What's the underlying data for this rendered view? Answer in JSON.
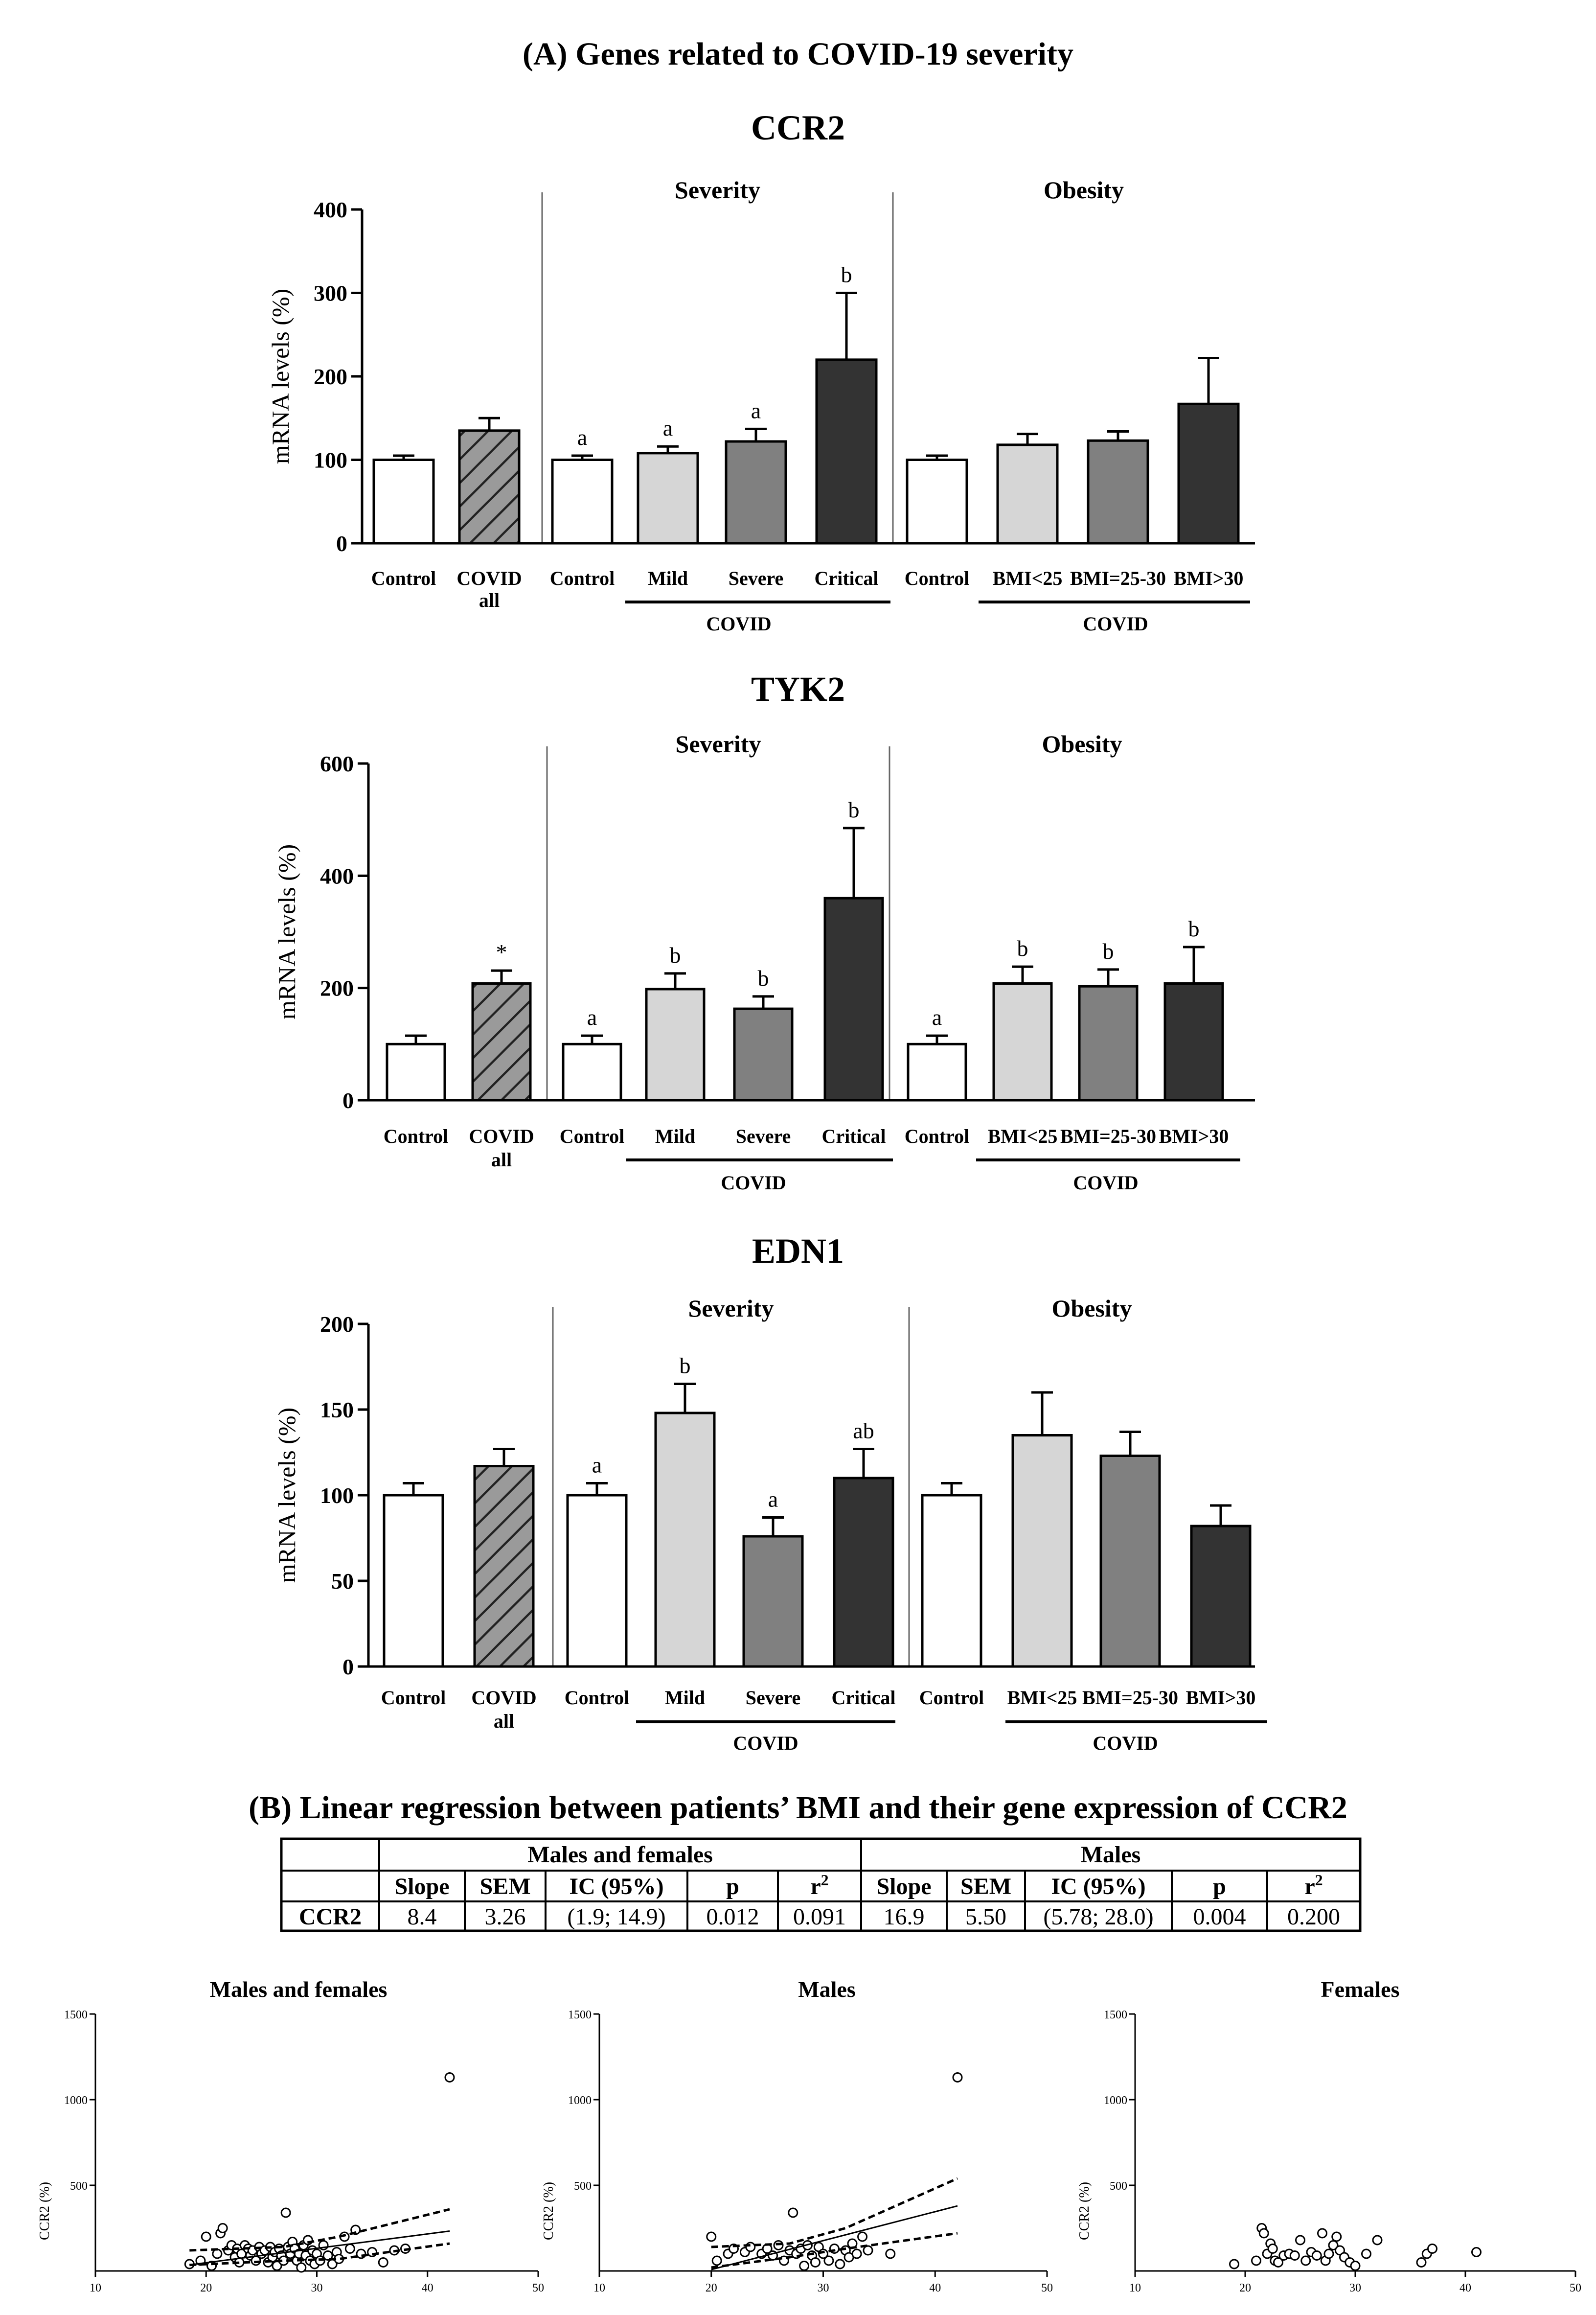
{
  "figure": {
    "title_a": "(A) Genes related to COVID-19 severity",
    "title_b": "(B) Linear regression between patients’ BMI and their gene expression of CCR2"
  },
  "chart_data": [
    {
      "type": "bar",
      "title": "CCR2",
      "ylabel": "mRNA levels (%)",
      "ylim": [
        0,
        400
      ],
      "yticks": [
        0,
        100,
        200,
        300,
        400
      ],
      "sections": [
        "Severity",
        "Obesity"
      ],
      "groups": [
        "COVID",
        "COVID"
      ],
      "categories": [
        "Control",
        "COVID all",
        "Control",
        "Mild",
        "Severe",
        "Critical",
        "Control",
        "BMI<25",
        "BMI=25-30",
        "BMI>30"
      ],
      "values": [
        100,
        135,
        100,
        108,
        122,
        220,
        100,
        118,
        123,
        167
      ],
      "errors": [
        5,
        15,
        5,
        8,
        15,
        80,
        5,
        13,
        11,
        55
      ],
      "letters": [
        "",
        "",
        "a",
        "a",
        "a",
        "b",
        "",
        "",
        "",
        ""
      ]
    },
    {
      "type": "bar",
      "title": "TYK2",
      "ylabel": "mRNA levels (%)",
      "ylim": [
        0,
        600
      ],
      "yticks": [
        0,
        200,
        400,
        600
      ],
      "sections": [
        "Severity",
        "Obesity"
      ],
      "groups": [
        "COVID",
        "COVID"
      ],
      "categories": [
        "Control",
        "COVID all",
        "Control",
        "Mild",
        "Severe",
        "Critical",
        "Control",
        "BMI<25",
        "BMI=25-30",
        "BMI>30"
      ],
      "values": [
        100,
        208,
        100,
        198,
        163,
        360,
        100,
        208,
        203,
        208
      ],
      "errors": [
        15,
        23,
        15,
        28,
        22,
        125,
        15,
        30,
        30,
        65
      ],
      "letters": [
        "",
        "*",
        "a",
        "b",
        "b",
        "b",
        "a",
        "b",
        "b",
        "b"
      ]
    },
    {
      "type": "bar",
      "title": "EDN1",
      "ylabel": "mRNA levels (%)",
      "ylim": [
        0,
        200
      ],
      "yticks": [
        0,
        50,
        100,
        150,
        200
      ],
      "sections": [
        "Severity",
        "Obesity"
      ],
      "groups": [
        "COVID",
        "COVID"
      ],
      "categories": [
        "Control",
        "COVID all",
        "Control",
        "Mild",
        "Severe",
        "Critical",
        "Control",
        "BMI<25",
        "BMI=25-30",
        "BMI>30"
      ],
      "values": [
        100,
        117,
        100,
        148,
        76,
        110,
        100,
        135,
        123,
        82
      ],
      "errors": [
        7,
        10,
        7,
        17,
        11,
        17,
        7,
        25,
        14,
        12
      ],
      "letters": [
        "",
        "",
        "a",
        "b",
        "a",
        "ab",
        "",
        "",
        "",
        ""
      ]
    },
    {
      "type": "table",
      "groups": [
        "Males and females",
        "Males"
      ],
      "columns": [
        "Slope",
        "SEM",
        "IC (95%)",
        "p",
        "r2"
      ],
      "rows": [
        {
          "label": "CCR2",
          "values": [
            "8.4",
            "3.26",
            "(1.9; 14.9)",
            "0.012",
            "0.091",
            "16.9",
            "5.50",
            "(5.78; 28.0)",
            "0.004",
            "0.200"
          ]
        }
      ]
    },
    {
      "type": "scatter",
      "title": "Males and females",
      "ylabel": "CCR2 (%)",
      "xlim": [
        10,
        50
      ],
      "ylim": [
        0,
        1500
      ],
      "xticks": [
        10,
        20,
        30,
        40,
        50
      ],
      "yticks": [
        500,
        1000,
        1500
      ],
      "points": [
        [
          18.5,
          40
        ],
        [
          19.5,
          60
        ],
        [
          20,
          200
        ],
        [
          20.5,
          30
        ],
        [
          21,
          100
        ],
        [
          21.3,
          220
        ],
        [
          21.5,
          250
        ],
        [
          22,
          120
        ],
        [
          22.3,
          150
        ],
        [
          22.6,
          80
        ],
        [
          22.8,
          130
        ],
        [
          23,
          50
        ],
        [
          23.2,
          100
        ],
        [
          23.5,
          150
        ],
        [
          23.8,
          130
        ],
        [
          24,
          90
        ],
        [
          24.2,
          120
        ],
        [
          24.5,
          60
        ],
        [
          24.8,
          140
        ],
        [
          25,
          100
        ],
        [
          25.3,
          120
        ],
        [
          25.6,
          50
        ],
        [
          25.8,
          140
        ],
        [
          26,
          80
        ],
        [
          26.2,
          110
        ],
        [
          26.4,
          30
        ],
        [
          26.6,
          130
        ],
        [
          26.8,
          90
        ],
        [
          27,
          60
        ],
        [
          27.2,
          340
        ],
        [
          27.4,
          140
        ],
        [
          27.6,
          100
        ],
        [
          27.8,
          170
        ],
        [
          28,
          130
        ],
        [
          28.2,
          60
        ],
        [
          28.4,
          100
        ],
        [
          28.6,
          20
        ],
        [
          28.8,
          150
        ],
        [
          29,
          90
        ],
        [
          29.2,
          180
        ],
        [
          29.4,
          60
        ],
        [
          29.6,
          120
        ],
        [
          29.8,
          40
        ],
        [
          30,
          100
        ],
        [
          30.3,
          60
        ],
        [
          30.6,
          150
        ],
        [
          31,
          90
        ],
        [
          31.4,
          40
        ],
        [
          31.8,
          110
        ],
        [
          32,
          70
        ],
        [
          32.5,
          200
        ],
        [
          33,
          130
        ],
        [
          33.5,
          240
        ],
        [
          34,
          100
        ],
        [
          35,
          110
        ],
        [
          36,
          50
        ],
        [
          37,
          120
        ],
        [
          38,
          130
        ],
        [
          42,
          1130
        ]
      ],
      "fit_line": {
        "slope": 8.4,
        "intercept": -120,
        "x_range": [
          18.5,
          42
        ]
      },
      "ci_lower": [
        [
          18.5,
          35
        ],
        [
          27,
          60
        ],
        [
          32,
          70
        ],
        [
          42,
          160
        ]
      ],
      "ci_upper": [
        [
          18.5,
          120
        ],
        [
          27,
          140
        ],
        [
          32,
          200
        ],
        [
          42,
          360
        ]
      ]
    },
    {
      "type": "scatter",
      "title": "Males",
      "ylabel": "CCR2 (%)",
      "xlim": [
        10,
        50
      ],
      "ylim": [
        0,
        1500
      ],
      "xticks": [
        10,
        20,
        30,
        40,
        50
      ],
      "yticks": [
        500,
        1000,
        1500
      ],
      "points": [
        [
          20,
          200
        ],
        [
          20.5,
          60
        ],
        [
          21.5,
          100
        ],
        [
          22,
          130
        ],
        [
          23,
          110
        ],
        [
          23.5,
          140
        ],
        [
          24.5,
          100
        ],
        [
          25,
          130
        ],
        [
          25.5,
          90
        ],
        [
          26,
          150
        ],
        [
          26.5,
          60
        ],
        [
          27,
          120
        ],
        [
          27.3,
          340
        ],
        [
          27.6,
          100
        ],
        [
          28,
          130
        ],
        [
          28.3,
          30
        ],
        [
          28.6,
          150
        ],
        [
          29,
          90
        ],
        [
          29.3,
          50
        ],
        [
          29.6,
          140
        ],
        [
          30,
          100
        ],
        [
          30.5,
          60
        ],
        [
          31,
          130
        ],
        [
          31.5,
          40
        ],
        [
          32,
          120
        ],
        [
          32.3,
          80
        ],
        [
          32.6,
          160
        ],
        [
          33,
          100
        ],
        [
          33.5,
          200
        ],
        [
          34,
          120
        ],
        [
          36,
          100
        ],
        [
          42,
          1130
        ]
      ],
      "fit_line": {
        "slope": 16.9,
        "intercept": -330,
        "x_range": [
          20,
          42
        ]
      },
      "ci_lower": [
        [
          20,
          20
        ],
        [
          27,
          80
        ],
        [
          32,
          130
        ],
        [
          42,
          220
        ]
      ],
      "ci_upper": [
        [
          20,
          140
        ],
        [
          27,
          160
        ],
        [
          32,
          250
        ],
        [
          42,
          540
        ]
      ]
    },
    {
      "type": "scatter",
      "title": "Females",
      "ylabel": "CCR2 (%)",
      "xlim": [
        10,
        50
      ],
      "ylim": [
        0,
        1500
      ],
      "xticks": [
        10,
        20,
        30,
        40,
        50
      ],
      "yticks": [
        500,
        1000,
        1500
      ],
      "points": [
        [
          19,
          40
        ],
        [
          21,
          60
        ],
        [
          21.5,
          250
        ],
        [
          21.7,
          220
        ],
        [
          22,
          100
        ],
        [
          22.3,
          160
        ],
        [
          22.5,
          130
        ],
        [
          22.7,
          60
        ],
        [
          23,
          50
        ],
        [
          23.5,
          90
        ],
        [
          24,
          100
        ],
        [
          24.5,
          90
        ],
        [
          25,
          180
        ],
        [
          25.5,
          60
        ],
        [
          26,
          110
        ],
        [
          26.5,
          90
        ],
        [
          27,
          220
        ],
        [
          27.3,
          60
        ],
        [
          27.6,
          100
        ],
        [
          28,
          150
        ],
        [
          28.3,
          200
        ],
        [
          28.6,
          120
        ],
        [
          29,
          80
        ],
        [
          29.5,
          50
        ],
        [
          30,
          30
        ],
        [
          31,
          100
        ],
        [
          32,
          180
        ],
        [
          36,
          50
        ],
        [
          36.5,
          100
        ],
        [
          37,
          130
        ],
        [
          41,
          110
        ]
      ]
    }
  ]
}
